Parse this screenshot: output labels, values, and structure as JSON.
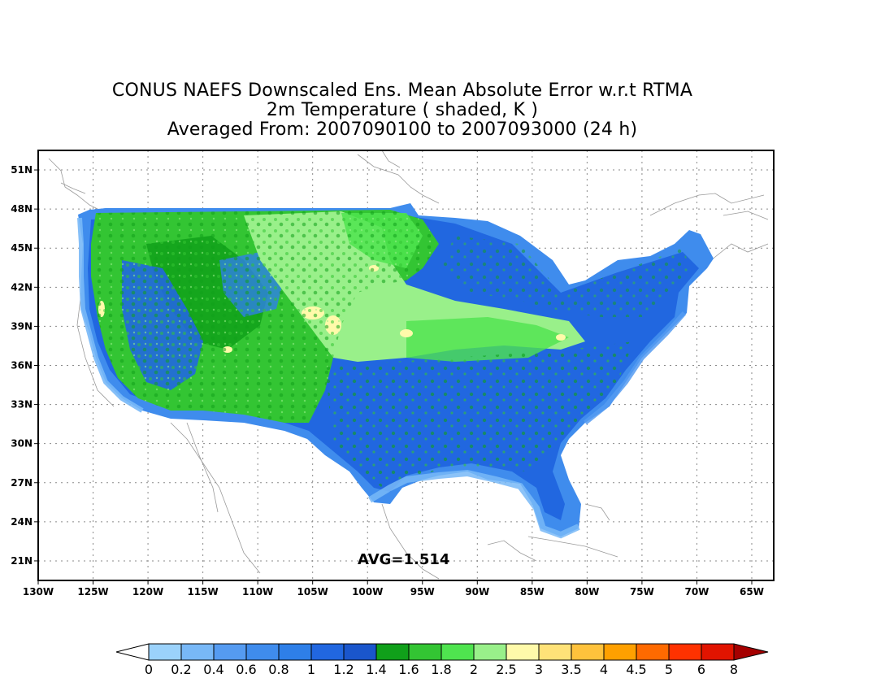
{
  "title": {
    "line1": "CONUS NAEFS Downscaled Ens. Mean Absolute Error w.r.t RTMA",
    "line2": "2m Temperature ( shaded, K )",
    "line3": "Averaged From: 2007090100 to 2007093000 (24 h)"
  },
  "map": {
    "lat_labels": [
      "51N",
      "48N",
      "45N",
      "42N",
      "39N",
      "36N",
      "33N",
      "30N",
      "27N",
      "24N",
      "21N"
    ],
    "lon_labels": [
      "130W",
      "125W",
      "120W",
      "115W",
      "110W",
      "105W",
      "100W",
      "95W",
      "90W",
      "85W",
      "80W",
      "75W",
      "70W",
      "65W"
    ],
    "lat_values": [
      51,
      48,
      45,
      42,
      39,
      36,
      33,
      30,
      27,
      24,
      21
    ],
    "lon_values": [
      -130,
      -125,
      -120,
      -115,
      -110,
      -105,
      -100,
      -95,
      -90,
      -85,
      -80,
      -75,
      -70,
      -65
    ],
    "lon_range": [
      -130,
      -63
    ],
    "lat_range": [
      19.5,
      52.5
    ],
    "grid": "dotted",
    "average_label": "AVG=1.514"
  },
  "colorbar": {
    "labels": [
      "0",
      "0.2",
      "0.4",
      "0.6",
      "0.8",
      "1",
      "1.2",
      "1.4",
      "1.6",
      "1.8",
      "2",
      "2.5",
      "3",
      "3.5",
      "4",
      "4.5",
      "5",
      "6",
      "8"
    ],
    "colors": [
      "#9bd2fb",
      "#78b8f7",
      "#559bf1",
      "#3f8ced",
      "#2e7fe8",
      "#2167e0",
      "#1a56cc",
      "#10a01a",
      "#33c533",
      "#4fe44f",
      "#99f08a",
      "#fffaaa",
      "#ffe278",
      "#ffc23c",
      "#ffa000",
      "#ff6a00",
      "#ff3200",
      "#e11400",
      "#a50000"
    ],
    "under_color": "#ffffff",
    "over_color": "#a50000"
  }
}
